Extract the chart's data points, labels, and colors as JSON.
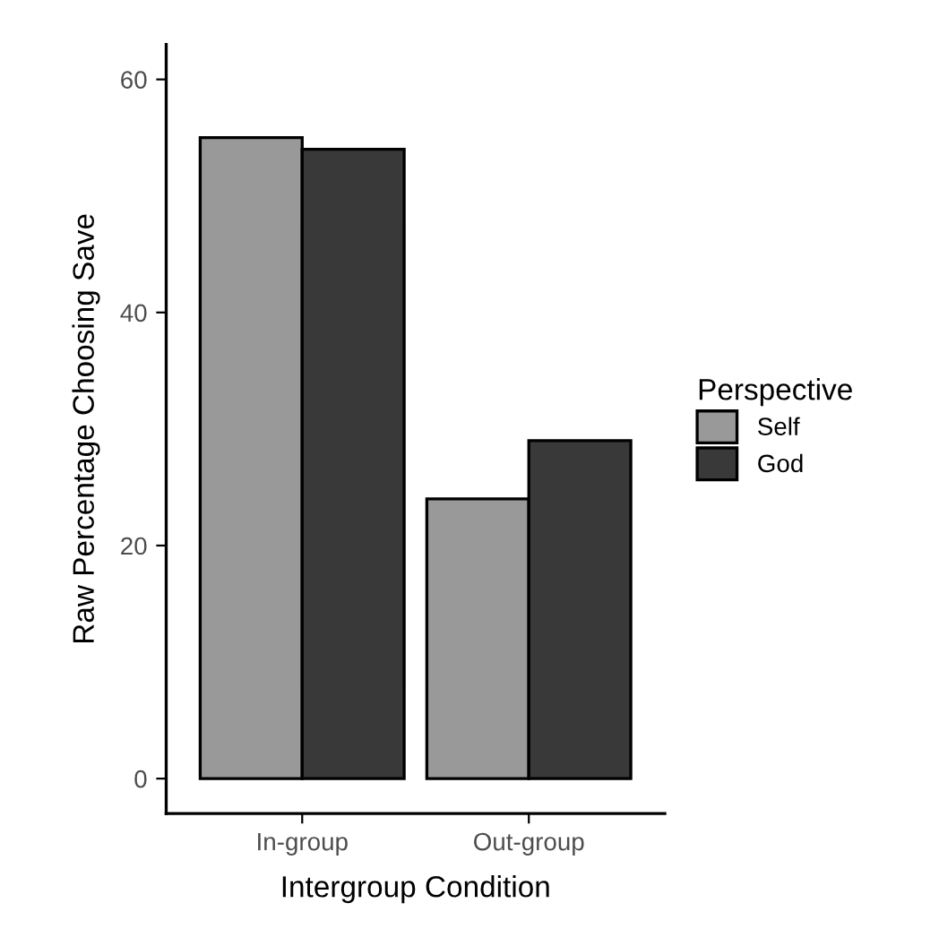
{
  "chart_data": {
    "type": "bar",
    "xlabel": "Intergroup Condition",
    "ylabel": "Raw Percentage Choosing Save",
    "legend_title": "Perspective",
    "categories": [
      "In-group",
      "Out-group"
    ],
    "series": [
      {
        "name": "Self",
        "color": "#999999",
        "values": [
          55,
          24
        ]
      },
      {
        "name": "God",
        "color": "#393939",
        "values": [
          54,
          29
        ]
      }
    ],
    "ylim": [
      -3,
      63
    ],
    "yticks": [
      0,
      20,
      40,
      60
    ],
    "grid": false,
    "legend": "right"
  }
}
